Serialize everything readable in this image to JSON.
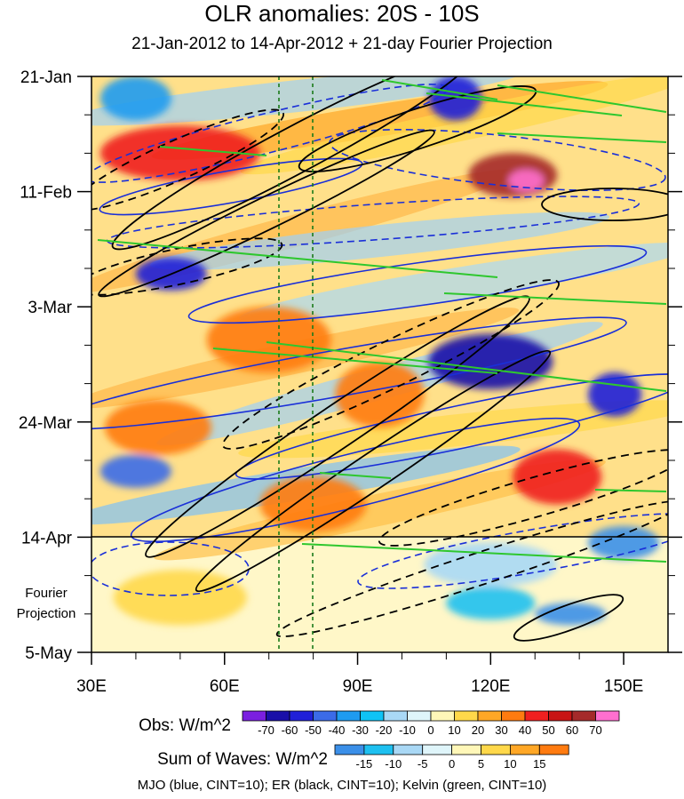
{
  "title": "OLR anomalies: 20S - 10S",
  "subtitle": "21-Jan-2012 to 14-Apr-2012 + 21-day Fourier Projection",
  "chart_data": {
    "type": "heatmap",
    "title": "OLR anomalies: 20S - 10S",
    "subtitle": "21-Jan-2012 to 14-Apr-2012 + 21-day Fourier Projection",
    "x_range": [
      30,
      160
    ],
    "x_ticks": [
      {
        "value": 30,
        "label": "30E"
      },
      {
        "value": 60,
        "label": "60E"
      },
      {
        "value": 90,
        "label": "90E"
      },
      {
        "value": 120,
        "label": "120E"
      },
      {
        "value": 150,
        "label": "150E"
      }
    ],
    "y_range_days": [
      0,
      105
    ],
    "y_ticks": [
      {
        "value": 0,
        "label": "21-Jan"
      },
      {
        "value": 21,
        "label": "11-Feb"
      },
      {
        "value": 42,
        "label": "3-Mar"
      },
      {
        "value": 63,
        "label": "24-Mar"
      },
      {
        "value": 84,
        "label": "14-Apr"
      },
      {
        "value": 105,
        "label": "5-May"
      }
    ],
    "forecast_label": [
      "Fourier",
      "Projection"
    ],
    "forecast_start_day": 84,
    "reference_lines_lon": [
      72.5,
      80
    ],
    "obs_colorbar": {
      "label": "Obs: W/m^2",
      "levels": [
        -70,
        -60,
        -50,
        -40,
        -30,
        -20,
        -10,
        0,
        10,
        20,
        30,
        40,
        50,
        60,
        70
      ],
      "colors": [
        "#7b1fe0",
        "#1a0fa8",
        "#2020d8",
        "#3b6be8",
        "#1e9bf0",
        "#0fc3f5",
        "#a9d8f5",
        "#dff5fa",
        "#fff7b8",
        "#ffd84a",
        "#ffa726",
        "#ff7b10",
        "#f02020",
        "#c81414",
        "#a52a2a",
        "#ff6fcf"
      ]
    },
    "waves_colorbar": {
      "label": "Sum of Waves: W/m^2",
      "levels": [
        -15,
        -10,
        -5,
        0,
        5,
        10,
        15
      ],
      "colors": [
        "#3b8fe8",
        "#1ec0f0",
        "#a9d8f5",
        "#dff5fa",
        "#fff7b8",
        "#ffd84a",
        "#ffa726",
        "#ff7b10"
      ]
    },
    "wave_overlays": [
      {
        "name": "MJO",
        "color": "blue",
        "cint": 10
      },
      {
        "name": "ER",
        "color": "black",
        "cint": 10
      },
      {
        "name": "Kelvin",
        "color": "green",
        "cint": 10
      }
    ],
    "caption": "MJO (blue, CINT=10); ER (black, CINT=10); Kelvin (green, CINT=10)",
    "features": [
      {
        "lon": 50,
        "day": 14,
        "value": 45,
        "rx": 18,
        "ry": 5
      },
      {
        "lon": 125,
        "day": 18,
        "value": 60,
        "rx": 10,
        "ry": 4
      },
      {
        "lon": 128,
        "day": 19,
        "value": 72,
        "rx": 4,
        "ry": 2
      },
      {
        "lon": 112,
        "day": 4,
        "value": -60,
        "rx": 6,
        "ry": 4
      },
      {
        "lon": 40,
        "day": 4,
        "value": -35,
        "rx": 8,
        "ry": 4
      },
      {
        "lon": 48,
        "day": 36,
        "value": -55,
        "rx": 8,
        "ry": 3
      },
      {
        "lon": 70,
        "day": 48,
        "value": 30,
        "rx": 14,
        "ry": 6
      },
      {
        "lon": 120,
        "day": 52,
        "value": -65,
        "rx": 14,
        "ry": 5
      },
      {
        "lon": 148,
        "day": 58,
        "value": -60,
        "rx": 6,
        "ry": 4
      },
      {
        "lon": 95,
        "day": 58,
        "value": 30,
        "rx": 10,
        "ry": 6
      },
      {
        "lon": 45,
        "day": 64,
        "value": 30,
        "rx": 12,
        "ry": 5
      },
      {
        "lon": 40,
        "day": 72,
        "value": -45,
        "rx": 8,
        "ry": 3
      },
      {
        "lon": 135,
        "day": 73,
        "value": 40,
        "rx": 10,
        "ry": 5
      },
      {
        "lon": 80,
        "day": 78,
        "value": 30,
        "rx": 12,
        "ry": 5
      },
      {
        "lon": 150,
        "day": 85,
        "value": -50,
        "rx": 8,
        "ry": 3
      },
      {
        "lon": 120,
        "day": 96,
        "value": -15,
        "rx": 10,
        "ry": 3
      },
      {
        "lon": 138,
        "day": 98,
        "value": -20,
        "rx": 8,
        "ry": 2
      },
      {
        "lon": 50,
        "day": 95,
        "value": 5,
        "rx": 15,
        "ry": 5
      },
      {
        "lon": 120,
        "day": 89,
        "value": -10,
        "rx": 15,
        "ry": 4
      }
    ]
  }
}
